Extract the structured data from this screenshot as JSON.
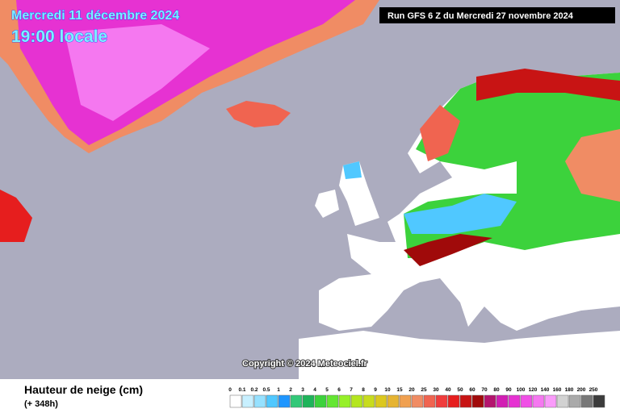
{
  "header": {
    "date": "Mercredi 11 décembre 2024",
    "time": "19:00 locale",
    "run": "Run GFS 6 Z du Mercredi 27 novembre 2024"
  },
  "copyright": "Copyright © 2024 Meteociel.fr",
  "legend": {
    "title": "Hauteur de neige (cm)",
    "subtitle": "(+ 348h)",
    "items": [
      {
        "label": "0",
        "color": "#ffffff"
      },
      {
        "label": "0.1",
        "color": "#c8f0ff"
      },
      {
        "label": "0.2",
        "color": "#96e1ff"
      },
      {
        "label": "0.5",
        "color": "#50c8ff"
      },
      {
        "label": "1",
        "color": "#1e96ff"
      },
      {
        "label": "2",
        "color": "#32c878"
      },
      {
        "label": "3",
        "color": "#1eb45a"
      },
      {
        "label": "4",
        "color": "#3cd23c"
      },
      {
        "label": "5",
        "color": "#64e632"
      },
      {
        "label": "6",
        "color": "#96f028"
      },
      {
        "label": "7",
        "color": "#b4e61e"
      },
      {
        "label": "8",
        "color": "#c8dc1e"
      },
      {
        "label": "9",
        "color": "#dcc81e"
      },
      {
        "label": "10",
        "color": "#e6b432"
      },
      {
        "label": "15",
        "color": "#f0a050"
      },
      {
        "label": "20",
        "color": "#f08c64"
      },
      {
        "label": "25",
        "color": "#f06450"
      },
      {
        "label": "30",
        "color": "#f03c3c"
      },
      {
        "label": "40",
        "color": "#e61e1e"
      },
      {
        "label": "50",
        "color": "#c81414"
      },
      {
        "label": "60",
        "color": "#a00a0a"
      },
      {
        "label": "70",
        "color": "#b4146e"
      },
      {
        "label": "80",
        "color": "#d21eb4"
      },
      {
        "label": "90",
        "color": "#e632d2"
      },
      {
        "label": "100",
        "color": "#f050e6"
      },
      {
        "label": "120",
        "color": "#f578f0"
      },
      {
        "label": "140",
        "color": "#fa9bfa"
      },
      {
        "label": "160",
        "color": "#d2d2d2"
      },
      {
        "label": "180",
        "color": "#aaaaaa"
      },
      {
        "label": "200",
        "color": "#787878"
      },
      {
        "label": "250",
        "color": "#3c3c3c"
      }
    ]
  }
}
